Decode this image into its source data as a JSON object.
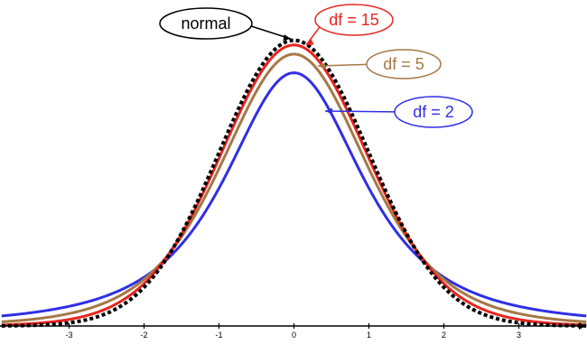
{
  "chart_data": {
    "type": "line",
    "title": "",
    "xlabel": "",
    "ylabel": "",
    "xlim": [
      -3.9,
      3.9
    ],
    "ylim": [
      0,
      0.4
    ],
    "grid": false,
    "x_ticks": [
      -3,
      -2,
      -1,
      0,
      1,
      2,
      3
    ],
    "x_tick_labels": [
      "-3",
      "-2",
      "-1",
      "0",
      "1",
      "2",
      "3"
    ],
    "series": [
      {
        "name": "normal",
        "distribution": "standard normal",
        "color": "#000000",
        "style": "dotted"
      },
      {
        "name": "df = 15",
        "distribution": "student-t",
        "df": 15,
        "color": "#e8251f",
        "style": "solid"
      },
      {
        "name": "df = 5",
        "distribution": "student-t",
        "df": 5,
        "color": "#a57845",
        "style": "solid"
      },
      {
        "name": "df = 2",
        "distribution": "student-t",
        "df": 2,
        "color": "#2f2fe6",
        "style": "solid"
      }
    ],
    "annotations": [
      {
        "text": "normal",
        "color": "#000000",
        "series": "normal"
      },
      {
        "text": "df = 15",
        "color": "#e8251f",
        "series": "df = 15"
      },
      {
        "text": "df = 5",
        "color": "#a57845",
        "series": "df = 5"
      },
      {
        "text": "df = 2",
        "color": "#2f2fe6",
        "series": "df = 2"
      }
    ]
  }
}
